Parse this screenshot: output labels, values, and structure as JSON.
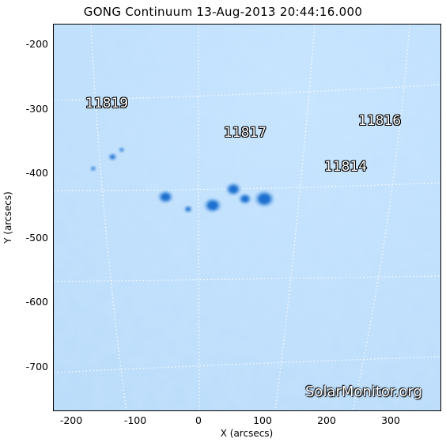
{
  "title": "GONG Continuum 13-Aug-2013 20:44:16.000",
  "x_axis": {
    "label": "X (arcsecs)",
    "range": [
      -226,
      375
    ],
    "ticks": [
      "-200",
      "-100",
      "0",
      "100",
      "200",
      "300"
    ],
    "tick_values": [
      -200,
      -100,
      0,
      100,
      200,
      300
    ]
  },
  "y_axis": {
    "label": "Y (arcsecs)",
    "range": [
      -770,
      -170
    ],
    "ticks": [
      "-200",
      "-300",
      "-400",
      "-500",
      "-600",
      "-700"
    ],
    "tick_values": [
      -200,
      -300,
      -400,
      -500,
      -600,
      -700
    ]
  },
  "active_regions": [
    {
      "id": "11819",
      "x": -175,
      "y": -298
    },
    {
      "id": "11817",
      "x": 45,
      "y": -342
    },
    {
      "id": "11816",
      "x": 255,
      "y": -323
    },
    {
      "id": "11814",
      "x": 198,
      "y": -397
    }
  ],
  "sunspots": [
    {
      "x": -53,
      "y": -437,
      "r": 6
    },
    {
      "x": -18,
      "y": -456,
      "r": 3
    },
    {
      "x": 20,
      "y": -450,
      "r": 7
    },
    {
      "x": 52,
      "y": -425,
      "r": 6
    },
    {
      "x": 70,
      "y": -440,
      "r": 5
    },
    {
      "x": 100,
      "y": -440,
      "r": 8
    },
    {
      "x": -135,
      "y": -375,
      "r": 3
    },
    {
      "x": -121,
      "y": -364,
      "r": 2
    },
    {
      "x": -165,
      "y": -393,
      "r": 2
    }
  ],
  "watermark": "SolarMonitor.org",
  "colors": {
    "background": "#bfe0ff",
    "sunspot": "#1a6fcf",
    "grid": "#ffffff"
  }
}
